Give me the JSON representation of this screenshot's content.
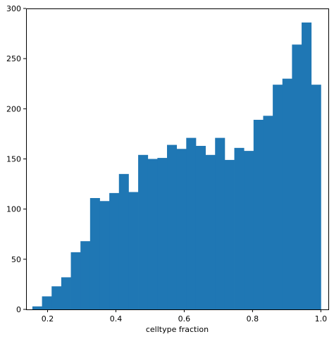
{
  "chart_data": {
    "type": "histogram",
    "xlabel": "celltype fraction",
    "ylabel": "",
    "title": "",
    "xlim": [
      0.137,
      1.022
    ],
    "ylim": [
      0,
      300
    ],
    "xticks": [
      0.2,
      0.4,
      0.6,
      0.8,
      1.0
    ],
    "xtick_labels": [
      "0.2",
      "0.4",
      "0.6",
      "0.8",
      "1.0"
    ],
    "yticks": [
      0,
      50,
      100,
      150,
      200,
      250,
      300
    ],
    "ytick_labels": [
      "0",
      "50",
      "100",
      "150",
      "200",
      "250",
      "300"
    ],
    "bin_start": 0.1555,
    "bin_width": 0.02815,
    "values": [
      3,
      13,
      23,
      32,
      57,
      68,
      111,
      108,
      116,
      135,
      117,
      154,
      150,
      151,
      164,
      160,
      171,
      163,
      154,
      171,
      149,
      161,
      158,
      189,
      193,
      224,
      230,
      264,
      286,
      224
    ],
    "bar_color": "#1f77b4",
    "grid": false
  }
}
